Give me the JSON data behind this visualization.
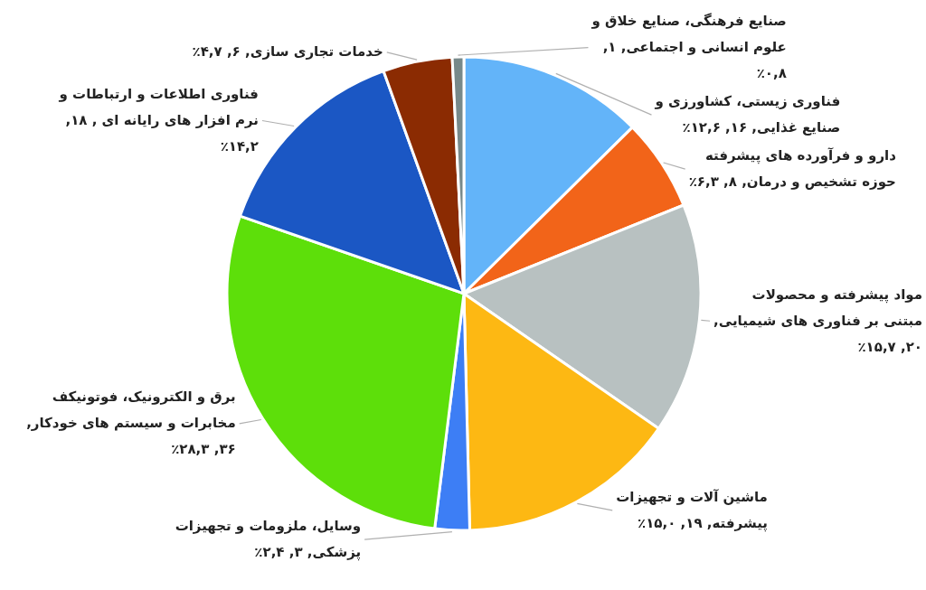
{
  "chart_data": {
    "type": "pie",
    "categories": [
      "فناوری زیستی، کشاورزی و صنایع غذایی",
      "دارو و فرآورده های پیشرفته حوزه تشخیص و درمان",
      "مواد پیشرفته و محصولات مبتنی بر فناوری های شیمیایی",
      "ماشین آلات و تجهیزات پیشرفته",
      "وسایل، ملزومات و تجهیزات پزشکی",
      "برق و الکترونیک، فوتونیکف مخابرات و سیستم های خودکار",
      "فناوری اطلاعات و ارتباطات و نرم افزار های رایانه ای ",
      "خدمات تجاری سازی",
      "صنایع فرهنگی، صنایع خلاق و علوم انسانی و اجتماعی"
    ],
    "values": [
      16,
      8,
      20,
      19,
      3,
      36,
      18,
      6,
      1
    ],
    "value_labels": [
      ", ۱۶, ۱۲,۶٪",
      ", ۸, ۶,۳٪",
      ", ۲۰, ۱۵,۷٪",
      ", ۱۹, ۱۵,۰٪",
      ", ۳, ۲,۴٪",
      ", ۳۶, ۲۸,۳٪",
      ", ۱۸, ۱۴,۲٪",
      ", ۶, ۴,۷٪",
      ", ۱, ۰,۸٪"
    ],
    "colors": [
      "#63b4f9",
      "#f26419",
      "#b8c1c1",
      "#fdb813",
      "#3d7ef5",
      "#5ddf0a",
      "#1b57c4",
      "#8b2b02",
      "#77898a"
    ]
  }
}
